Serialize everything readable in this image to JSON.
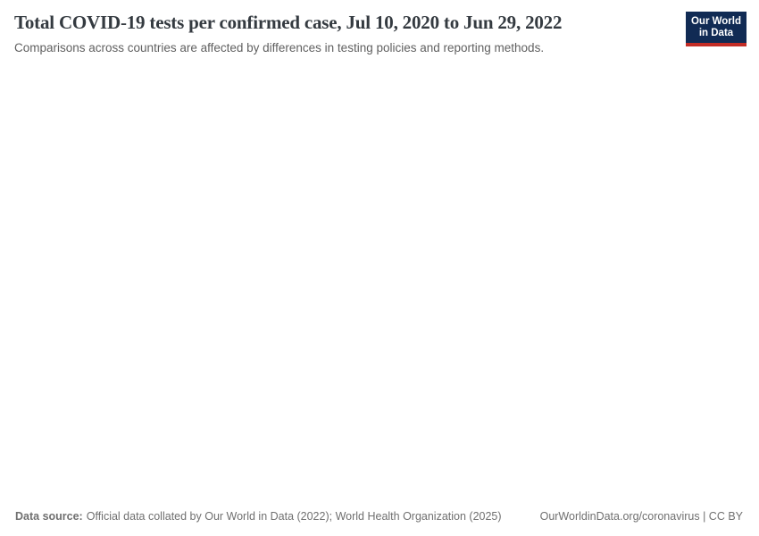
{
  "header": {
    "title": "Total COVID-19 tests per confirmed case, Jul 10, 2020 to Jun 29, 2022",
    "subtitle": "Comparisons across countries are affected by differences in testing policies and reporting methods."
  },
  "logo": {
    "line1": "Our World",
    "line2": "in Data"
  },
  "footer": {
    "source_label": "Data source:",
    "source_text": "Official data collated by Our World in Data (2022); World Health Organization (2025)",
    "link_text": "OurWorldinData.org/coronavirus | CC BY"
  },
  "colors": {
    "title_text": "#343a40",
    "subtitle_text": "#606060",
    "footer_text": "#707070",
    "logo_background": "#112b54",
    "logo_accent_red": "#c32d26",
    "page_background": "#ffffff"
  },
  "chart_data": {
    "type": "line",
    "title": "Total COVID-19 tests per confirmed case, Jul 10, 2020 to Jun 29, 2022",
    "subtitle": "Comparisons across countries are affected by differences in testing policies and reporting methods.",
    "date_range": {
      "start": "Jul 10, 2020",
      "end": "Jun 29, 2022"
    },
    "series": [],
    "plot_area_empty": true,
    "grid": false,
    "legend_position": "none"
  }
}
